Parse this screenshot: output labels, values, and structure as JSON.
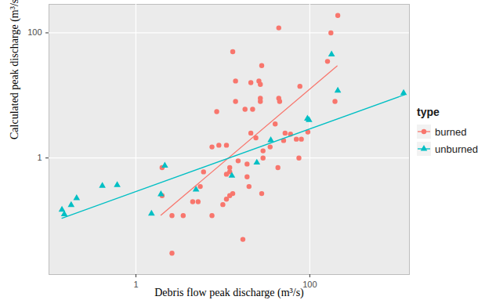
{
  "chart_data": {
    "type": "scatter",
    "x_label": "Debris flow peak discharge (m³/s)",
    "y_label": "Calculated peak discharge (m³/s)",
    "legend_title": "type",
    "legend": "right",
    "log": true,
    "grid": true,
    "xlim": [
      0.1,
      1400
    ],
    "ylim": [
      0.0137,
      286
    ],
    "xticks": [
      1,
      100
    ],
    "yticks": [
      1,
      100
    ],
    "series": [
      {
        "name": "burned",
        "color": "#F8766D",
        "marker": "circle",
        "x": [
          2.0,
          2.0,
          2.6,
          2.6,
          3.5,
          4.5,
          5.2,
          5.5,
          6,
          7.5,
          7.5,
          8.5,
          9,
          10,
          11,
          11,
          11,
          12,
          12,
          12,
          13,
          13,
          14,
          14,
          15,
          17,
          18,
          19,
          19,
          20,
          21,
          21,
          22,
          24,
          26,
          27,
          27,
          27,
          28,
          28,
          29,
          29,
          35,
          40,
          43,
          44,
          44,
          45,
          50,
          52,
          60,
          70,
          75,
          77,
          80,
          95,
          160,
          175,
          195,
          210
        ],
        "values": [
          0.7,
          0.25,
          0.03,
          0.12,
          0.12,
          0.2,
          0.2,
          0.35,
          0.6,
          1.5,
          0.12,
          5.5,
          1.6,
          0.18,
          1.6,
          0.22,
          0.55,
          0.6,
          0.7,
          0.25,
          0.27,
          50,
          17,
          8,
          0.9,
          0.05,
          6,
          0.8,
          0.5,
          0.35,
          2.5,
          16,
          6,
          2.1,
          17,
          15,
          9,
          8,
          0.27,
          30,
          1.0,
          1.3,
          1.5,
          3.5,
          0.7,
          9,
          120,
          8,
          1.9,
          2.5,
          2.4,
          2.0,
          1.0,
          14,
          2.0,
          2.6,
          35,
          100,
          8,
          190
        ],
        "fit": {
          "x": [
            1.94,
            206
          ],
          "values": [
            0.122,
            29.5
          ]
        }
      },
      {
        "name": "unburned",
        "color": "#00BFC4",
        "marker": "triangle",
        "x": [
          0.141,
          0.15,
          0.18,
          0.208,
          0.411,
          0.609,
          1.51,
          1.94,
          2.15,
          4.91,
          12.7,
          24.6,
          35.6,
          94,
          98,
          178,
          210,
          1200
        ],
        "values": [
          0.149,
          0.126,
          0.177,
          0.228,
          0.359,
          0.37,
          0.129,
          0.263,
          0.753,
          0.312,
          0.52,
          0.843,
          1.92,
          4.26,
          4.03,
          45.1,
          11.9,
          10.9
        ],
        "fit": {
          "x": [
            0.141,
            1240
          ],
          "values": [
            0.109,
            10.3
          ]
        }
      }
    ]
  }
}
